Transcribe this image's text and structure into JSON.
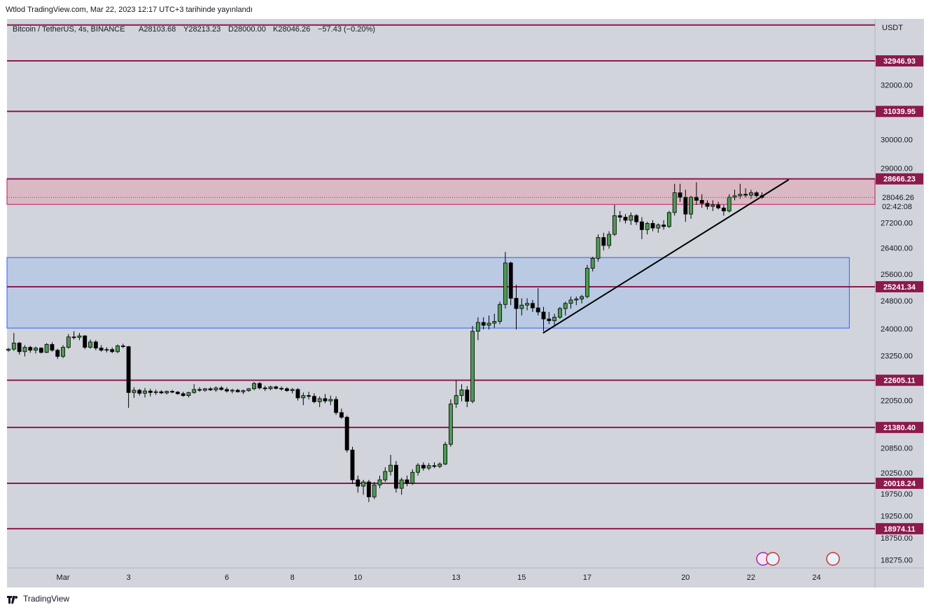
{
  "published": "Wtlod TradingView.com, Mar 22, 2023 12:17 UTC+3 tarihinde yayınlandı",
  "brand": "TradingView",
  "chart_data": {
    "type": "candlestick",
    "title": "Bitcoin / TetherUS, 4s, BINANCE",
    "ohlc_labels": [
      "A28103.68",
      "Y28213.23",
      "D28000.00",
      "K28046.26",
      "−57.43 (−0.20%)"
    ],
    "currency": "USDT",
    "up_color": "#4e9a52",
    "down_color": "#000000",
    "log_scale": true,
    "xlim": [
      -0.26,
      158.7
    ],
    "ylim": [
      18116,
      34620
    ],
    "xticks": [
      {
        "value": 10,
        "label": "Mar"
      },
      {
        "value": 22,
        "label": "3"
      },
      {
        "value": 40,
        "label": "6"
      },
      {
        "value": 52,
        "label": "8"
      },
      {
        "value": 64,
        "label": "10"
      },
      {
        "value": 82,
        "label": "13"
      },
      {
        "value": 94,
        "label": "15"
      },
      {
        "value": 106,
        "label": "17"
      },
      {
        "value": 124,
        "label": "20"
      },
      {
        "value": 136,
        "label": "22"
      },
      {
        "value": 148,
        "label": "24"
      }
    ],
    "yticks": [
      {
        "value": 32000,
        "label": "32000.00"
      },
      {
        "value": 30000,
        "label": "30000.00"
      },
      {
        "value": 29000,
        "label": "29000.00"
      },
      {
        "value": 27200,
        "label": "27200.00"
      },
      {
        "value": 26400,
        "label": "26400.00"
      },
      {
        "value": 25600,
        "label": "25600.00"
      },
      {
        "value": 24800,
        "label": "24800.00"
      },
      {
        "value": 24000,
        "label": "24000.00"
      },
      {
        "value": 23250,
        "label": "23250.00"
      },
      {
        "value": 22050,
        "label": "22050.00"
      },
      {
        "value": 20850,
        "label": "20850.00"
      },
      {
        "value": 20250,
        "label": "20250.00"
      },
      {
        "value": 19750,
        "label": "19750.00"
      },
      {
        "value": 19250,
        "label": "19250.00"
      },
      {
        "value": 18750,
        "label": "18750.00"
      },
      {
        "value": 18275,
        "label": "18275.00"
      }
    ],
    "levels": {
      "color": "#8c1a4b",
      "values": [
        34370,
        32946.93,
        31039.95,
        28666.23,
        25241.34,
        22605.11,
        21380.4,
        20018.24,
        18974.11
      ],
      "value_labels": [
        null,
        "32946.93",
        "31039.95",
        "28666.23",
        "25241.34",
        "22605.11",
        "21380.40",
        "20018.24",
        "18974.11"
      ]
    },
    "current_price": {
      "value": 28046.26,
      "label": "28046.26",
      "countdown": "02:42:08"
    },
    "zones": [
      {
        "y": [
          27816,
          28666
        ],
        "color": "#dcb4c0",
        "border": "#c2185b"
      },
      {
        "y": [
          24040,
          26126
        ],
        "x_end": 154,
        "color": "#b6c8e4",
        "border": "#2962ff"
      }
    ],
    "trendline": {
      "x": [
        97.9,
        142.9
      ],
      "y": [
        23900,
        28640
      ]
    },
    "candles": [
      [
        23420,
        23480,
        23380,
        23450
      ],
      [
        23450,
        23900,
        23400,
        23620
      ],
      [
        23620,
        23650,
        23300,
        23380
      ],
      [
        23380,
        23560,
        23250,
        23500
      ],
      [
        23500,
        23540,
        23350,
        23420
      ],
      [
        23420,
        23520,
        23330,
        23480
      ],
      [
        23480,
        23500,
        23330,
        23360
      ],
      [
        23360,
        23620,
        23340,
        23580
      ],
      [
        23580,
        23640,
        23380,
        23420
      ],
      [
        23420,
        23460,
        23180,
        23250
      ],
      [
        23250,
        23560,
        23200,
        23500
      ],
      [
        23500,
        23870,
        23460,
        23790
      ],
      [
        23790,
        23950,
        23720,
        23780
      ],
      [
        23780,
        23900,
        23700,
        23820
      ],
      [
        23820,
        23840,
        23450,
        23500
      ],
      [
        23500,
        23720,
        23460,
        23650
      ],
      [
        23650,
        23700,
        23420,
        23480
      ],
      [
        23480,
        23560,
        23380,
        23420
      ],
      [
        23420,
        23500,
        23360,
        23440
      ],
      [
        23440,
        23500,
        23340,
        23380
      ],
      [
        23380,
        23580,
        23340,
        23540
      ],
      [
        23540,
        23600,
        23480,
        23520
      ],
      [
        23520,
        23540,
        21880,
        22280
      ],
      [
        22280,
        22420,
        22140,
        22340
      ],
      [
        22340,
        22380,
        22200,
        22260
      ],
      [
        22260,
        22400,
        22150,
        22320
      ],
      [
        22320,
        22380,
        22180,
        22280
      ],
      [
        22280,
        22360,
        22220,
        22300
      ],
      [
        22300,
        22340,
        22240,
        22270
      ],
      [
        22270,
        22330,
        22230,
        22310
      ],
      [
        22310,
        22350,
        22260,
        22290
      ],
      [
        22290,
        22320,
        22220,
        22250
      ],
      [
        22250,
        22300,
        22170,
        22200
      ],
      [
        22200,
        22300,
        22150,
        22280
      ],
      [
        22280,
        22500,
        22250,
        22360
      ],
      [
        22360,
        22420,
        22300,
        22340
      ],
      [
        22340,
        22400,
        22300,
        22380
      ],
      [
        22380,
        22420,
        22320,
        22350
      ],
      [
        22350,
        22440,
        22300,
        22400
      ],
      [
        22400,
        22450,
        22330,
        22360
      ],
      [
        22360,
        22420,
        22280,
        22320
      ],
      [
        22320,
        22380,
        22260,
        22340
      ],
      [
        22340,
        22380,
        22280,
        22300
      ],
      [
        22300,
        22360,
        22240,
        22330
      ],
      [
        22330,
        22400,
        22300,
        22380
      ],
      [
        22380,
        22560,
        22340,
        22520
      ],
      [
        22520,
        22560,
        22360,
        22400
      ],
      [
        22400,
        22460,
        22320,
        22380
      ],
      [
        22380,
        22460,
        22340,
        22430
      ],
      [
        22430,
        22460,
        22360,
        22390
      ],
      [
        22390,
        22440,
        22330,
        22380
      ],
      [
        22380,
        22420,
        22300,
        22330
      ],
      [
        22330,
        22400,
        22260,
        22360
      ],
      [
        22360,
        22400,
        22070,
        22140
      ],
      [
        22140,
        22280,
        21950,
        22200
      ],
      [
        22200,
        22300,
        22100,
        22180
      ],
      [
        22180,
        22260,
        22000,
        22040
      ],
      [
        22040,
        22180,
        21900,
        22120
      ],
      [
        22120,
        22240,
        22000,
        22060
      ],
      [
        22060,
        22200,
        21950,
        22100
      ],
      [
        22100,
        22180,
        21700,
        21760
      ],
      [
        21760,
        21860,
        21600,
        21640
      ],
      [
        21640,
        21680,
        20760,
        20820
      ],
      [
        20820,
        20900,
        20000,
        20100
      ],
      [
        20100,
        20200,
        19800,
        19950
      ],
      [
        19950,
        20100,
        19750,
        20050
      ],
      [
        20050,
        20100,
        19580,
        19700
      ],
      [
        19700,
        20050,
        19650,
        19980
      ],
      [
        19980,
        20200,
        19900,
        20100
      ],
      [
        20100,
        20400,
        20050,
        20300
      ],
      [
        20300,
        20700,
        20200,
        20450
      ],
      [
        20450,
        20550,
        19800,
        19900
      ],
      [
        19900,
        20150,
        19750,
        20100
      ],
      [
        20100,
        20200,
        19950,
        20020
      ],
      [
        20020,
        20350,
        19980,
        20280
      ],
      [
        20280,
        20500,
        20200,
        20450
      ],
      [
        20450,
        20520,
        20320,
        20380
      ],
      [
        20380,
        20500,
        20330,
        20440
      ],
      [
        20440,
        20520,
        20380,
        20420
      ],
      [
        20420,
        20520,
        20380,
        20480
      ],
      [
        20480,
        21020,
        20450,
        20960
      ],
      [
        20960,
        22100,
        20900,
        21980
      ],
      [
        21980,
        22600,
        21880,
        22200
      ],
      [
        22200,
        22500,
        22050,
        22350
      ],
      [
        22350,
        22450,
        21900,
        22050
      ],
      [
        22050,
        24100,
        22000,
        23950
      ],
      [
        23950,
        24350,
        23700,
        24200
      ],
      [
        24200,
        24350,
        24000,
        24120
      ],
      [
        24120,
        24400,
        24000,
        24180
      ],
      [
        24180,
        24450,
        24050,
        24230
      ],
      [
        24230,
        24800,
        24150,
        24720
      ],
      [
        24720,
        26300,
        24600,
        25960
      ],
      [
        25960,
        26000,
        24700,
        24900
      ],
      [
        24900,
        25300,
        24000,
        24600
      ],
      [
        24600,
        24900,
        24400,
        24700
      ],
      [
        24700,
        24900,
        24550,
        24750
      ],
      [
        24750,
        24850,
        24500,
        24620
      ],
      [
        24620,
        25200,
        24400,
        24500
      ],
      [
        24500,
        24650,
        23950,
        24300
      ],
      [
        24300,
        24500,
        24150,
        24250
      ],
      [
        24250,
        24450,
        24100,
        24350
      ],
      [
        24350,
        24650,
        24300,
        24600
      ],
      [
        24600,
        24800,
        24400,
        24750
      ],
      [
        24750,
        24950,
        24600,
        24850
      ],
      [
        24850,
        24950,
        24700,
        24880
      ],
      [
        24880,
        25000,
        24750,
        24950
      ],
      [
        24950,
        25900,
        24900,
        25800
      ],
      [
        25800,
        26150,
        25700,
        26100
      ],
      [
        26100,
        26850,
        26000,
        26750
      ],
      [
        26750,
        26900,
        26350,
        26500
      ],
      [
        26500,
        26950,
        26400,
        26850
      ],
      [
        26850,
        27800,
        26800,
        27450
      ],
      [
        27450,
        27600,
        27250,
        27400
      ],
      [
        27400,
        27500,
        27200,
        27300
      ],
      [
        27300,
        27550,
        27150,
        27450
      ],
      [
        27450,
        27500,
        27150,
        27250
      ],
      [
        27250,
        27400,
        26700,
        27000
      ],
      [
        27000,
        27250,
        26850,
        27200
      ],
      [
        27200,
        27300,
        26950,
        27050
      ],
      [
        27050,
        27200,
        26900,
        27150
      ],
      [
        27150,
        27300,
        27000,
        27100
      ],
      [
        27100,
        27600,
        27050,
        27550
      ],
      [
        27550,
        28500,
        27450,
        28200
      ],
      [
        28200,
        28500,
        27900,
        28050
      ],
      [
        28050,
        28300,
        27250,
        27500
      ],
      [
        27500,
        28100,
        27350,
        28050
      ],
      [
        28050,
        28550,
        27800,
        27950
      ],
      [
        27950,
        28150,
        27700,
        27850
      ],
      [
        27850,
        27950,
        27650,
        27750
      ],
      [
        27750,
        27950,
        27600,
        27800
      ],
      [
        27800,
        27900,
        27650,
        27700
      ],
      [
        27700,
        27800,
        27450,
        27600
      ],
      [
        27600,
        28150,
        27550,
        28050
      ],
      [
        28050,
        28300,
        27950,
        28100
      ],
      [
        28100,
        28500,
        28000,
        28150
      ],
      [
        28150,
        28350,
        28050,
        28120
      ],
      [
        28120,
        28300,
        28000,
        28200
      ],
      [
        28200,
        28250,
        28050,
        28103.68
      ],
      [
        28103.68,
        28213.23,
        28000,
        28046.26
      ]
    ]
  }
}
